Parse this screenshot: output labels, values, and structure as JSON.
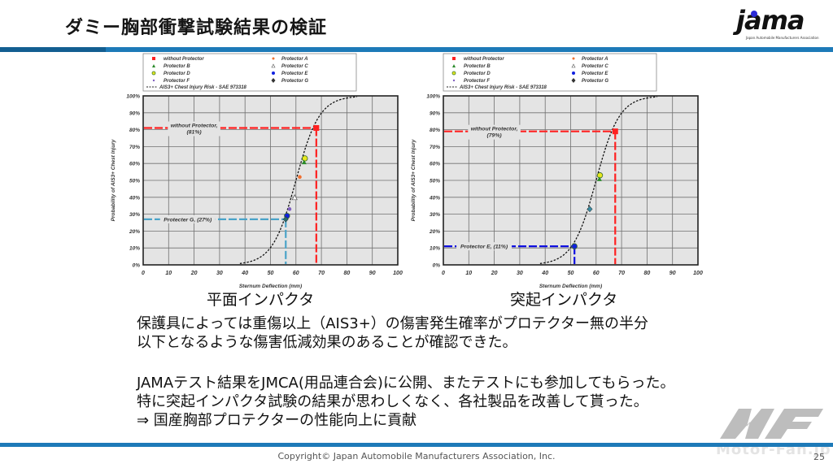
{
  "header": {
    "title": "ダミー胸部衝撃試験結果の検証",
    "logo_text": "jama",
    "logo_subtext": "Japan Automobile Manufacturers Association"
  },
  "colors": {
    "accent_bar": "#1d7ab8",
    "without_protector": "#ff2020",
    "protector_g_line": "#4aa3c8",
    "protector_e_line": "#1010e0",
    "plot_bg": "#e4e4e4"
  },
  "legend": {
    "items": [
      {
        "label": "without Protector",
        "marker": "square",
        "color": "#ff2020"
      },
      {
        "label": "Protector A",
        "marker": "dot",
        "color": "#f07030"
      },
      {
        "label": "Protector B",
        "marker": "triangle",
        "color": "#2a8a2a"
      },
      {
        "label": "Protector C",
        "marker": "triangle-open",
        "color": "#555555"
      },
      {
        "label": "Protector D",
        "marker": "circle",
        "color": "#e8e820"
      },
      {
        "label": "Protector E",
        "marker": "circle",
        "color": "#1020e0"
      },
      {
        "label": "Protector F",
        "marker": "dot",
        "color": "#8060c0"
      },
      {
        "label": "Protector G",
        "marker": "diamond",
        "color": "#2a6a6a"
      }
    ],
    "curve_label": "AIS3+ Chest Injury Risk - SAE 973318"
  },
  "chart_data": [
    {
      "type": "scatter",
      "title": "平面インパクタ",
      "xlabel": "Sternum Deflection (mm)",
      "ylabel": "Probability of AIS3+ Chest Injury",
      "xlim": [
        0,
        100
      ],
      "ylim": [
        0,
        100
      ],
      "x_ticks": [
        "0",
        "10",
        "20",
        "30",
        "40",
        "50",
        "60",
        "70",
        "80",
        "90",
        "100"
      ],
      "y_ticks": [
        "0%",
        "10%",
        "20%",
        "30%",
        "40%",
        "50%",
        "60%",
        "70%",
        "80%",
        "90%",
        "100%"
      ],
      "grid": true,
      "curve": "AIS3+ Chest Injury Risk - SAE 973318 (logistic, ~50% at 60 mm)",
      "points": [
        {
          "name": "without Protector",
          "x": 68,
          "y": 81,
          "color": "#ff2020",
          "marker": "square"
        },
        {
          "name": "Protector D",
          "x": 63.5,
          "y": 63,
          "color": "#e8e820",
          "marker": "circle"
        },
        {
          "name": "Protector B",
          "x": 63.2,
          "y": 61,
          "color": "#2a8a2a",
          "marker": "triangle"
        },
        {
          "name": "Protector A",
          "x": 61.5,
          "y": 52,
          "color": "#f07030",
          "marker": "dot"
        },
        {
          "name": "Protector C",
          "x": 59.5,
          "y": 40,
          "color": "#ffffff",
          "marker": "triangle-open"
        },
        {
          "name": "Protector F",
          "x": 57.5,
          "y": 33,
          "color": "#8060c0",
          "marker": "dot"
        },
        {
          "name": "Protector E",
          "x": 56.5,
          "y": 29,
          "color": "#1020e0",
          "marker": "circle"
        },
        {
          "name": "Protector G",
          "x": 56,
          "y": 27,
          "color": "#2a6a6a",
          "marker": "diamond"
        }
      ],
      "reference_lines": [
        {
          "label": "without Protector, (81%)",
          "x": 68,
          "y": 81,
          "color": "#ff2020"
        },
        {
          "label": "Protecter G, (27%)",
          "x": 56,
          "y": 27,
          "color": "#4aa3c8"
        }
      ]
    },
    {
      "type": "scatter",
      "title": "突起インパクタ",
      "xlabel": "Sternum Deflection (mm)",
      "ylabel": "Probability of AIS3+ Chest Injury",
      "xlim": [
        0,
        100
      ],
      "ylim": [
        0,
        100
      ],
      "x_ticks": [
        "0",
        "10",
        "20",
        "30",
        "40",
        "50",
        "60",
        "70",
        "80",
        "90",
        "100"
      ],
      "y_ticks": [
        "0%",
        "10%",
        "20%",
        "30%",
        "40%",
        "50%",
        "60%",
        "70%",
        "80%",
        "90%",
        "100%"
      ],
      "grid": true,
      "curve": "AIS3+ Chest Injury Risk - SAE 973318 (logistic, ~50% at 60 mm)",
      "points": [
        {
          "name": "without Protector",
          "x": 67.5,
          "y": 79,
          "color": "#ff2020",
          "marker": "square"
        },
        {
          "name": "Protector D",
          "x": 61.5,
          "y": 53,
          "color": "#e8e820",
          "marker": "circle"
        },
        {
          "name": "Protector B",
          "x": 61.3,
          "y": 51,
          "color": "#2a8a2a",
          "marker": "triangle"
        },
        {
          "name": "Protector G",
          "x": 57.5,
          "y": 33,
          "color": "#3a8aa0",
          "marker": "diamond"
        },
        {
          "name": "Protector E",
          "x": 51.5,
          "y": 11,
          "color": "#1020e0",
          "marker": "circle"
        }
      ],
      "reference_lines": [
        {
          "label": "without Protector, (79%)",
          "x": 67.5,
          "y": 79,
          "color": "#ff2020"
        },
        {
          "label": "Protector E, (11%)",
          "x": 51.5,
          "y": 11,
          "color": "#1010e0"
        }
      ]
    }
  ],
  "charts": {
    "left": {
      "caption": "平面インパクタ",
      "xlabel": "Sternum Deflection (mm)",
      "ylabel": "Probability of AIS3+ Chest Injury",
      "ref1_line1": "without Protector,",
      "ref1_line2": "(81%)",
      "ref2": "Protecter G, (27%)"
    },
    "right": {
      "caption": "突起インパクタ",
      "xlabel": "Sternum Deflection (mm)",
      "ylabel": "Probability of AIS3+ Chest Injury",
      "ref1_line1": "without Protector,",
      "ref1_line2": "(79%)",
      "ref2": "Protector E, (11%)"
    }
  },
  "body": {
    "paragraph1": [
      "保護具によっては重傷以上（AIS3+）の傷害発生確率がプロテクター無の半分",
      "以下となるような傷害低減効果のあることが確認できた。"
    ],
    "paragraph2": [
      "JAMAテスト結果をJMCA(用品連合会)に公開、またテストにも参加してもらった。",
      "特に突起インパクタ試験の結果が思わしくなく、各社製品を改善して貰った。",
      "⇒ 国産胸部プロテクターの性能向上に貢献"
    ]
  },
  "footer": {
    "copyright": "Copyright© Japan Automobile Manufacturers Association, Inc.",
    "page_number": "25",
    "watermark": "Motor-Fan.jp"
  }
}
